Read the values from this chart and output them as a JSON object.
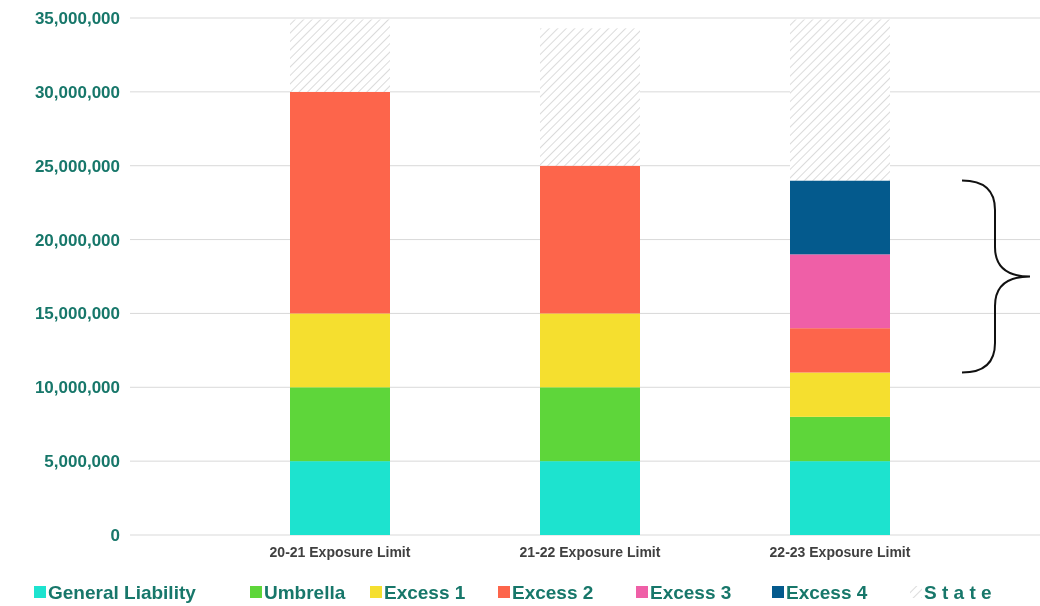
{
  "chart_data": {
    "type": "bar",
    "stacked": true,
    "categories": [
      "20-21 Exposure Limit",
      "21-22 Exposure Limit",
      "22-23 Exposure Limit"
    ],
    "series": [
      {
        "name": "General Liability",
        "color": "#1de3cf",
        "values": [
          5000000,
          5000000,
          5000000
        ]
      },
      {
        "name": "Umbrella",
        "color": "#5ed63a",
        "values": [
          5000000,
          5000000,
          3000000
        ]
      },
      {
        "name": "Excess 1",
        "color": "#f5df2f",
        "values": [
          5000000,
          5000000,
          3000000
        ]
      },
      {
        "name": "Excess 2",
        "color": "#fd654b",
        "values": [
          15000000,
          10000000,
          3000000
        ]
      },
      {
        "name": "Excess 3",
        "color": "#ef5fa7",
        "values": [
          null,
          null,
          5000000
        ]
      },
      {
        "name": "Excess 4",
        "color": "#045a8d",
        "values": [
          null,
          null,
          5000000
        ]
      },
      {
        "name": "S t a t e",
        "color": "#d0d0d0",
        "values": [
          4900000,
          9300000,
          10900000
        ]
      }
    ],
    "ylim": [
      0,
      35000000
    ],
    "yticks": [
      {
        "value": 0,
        "label": "0"
      },
      {
        "value": 5000000,
        "label": "5,000,000"
      },
      {
        "value": 10000000,
        "label": "10,000,000"
      },
      {
        "value": 15000000,
        "label": "15,000,000"
      },
      {
        "value": 20000000,
        "label": "20,000,000"
      },
      {
        "value": 25000000,
        "label": "25,000,000"
      },
      {
        "value": 30000000,
        "label": "30,000,000"
      },
      {
        "value": 35000000,
        "label": "35,000,000"
      }
    ],
    "grid": "y",
    "legend": "bottom"
  }
}
